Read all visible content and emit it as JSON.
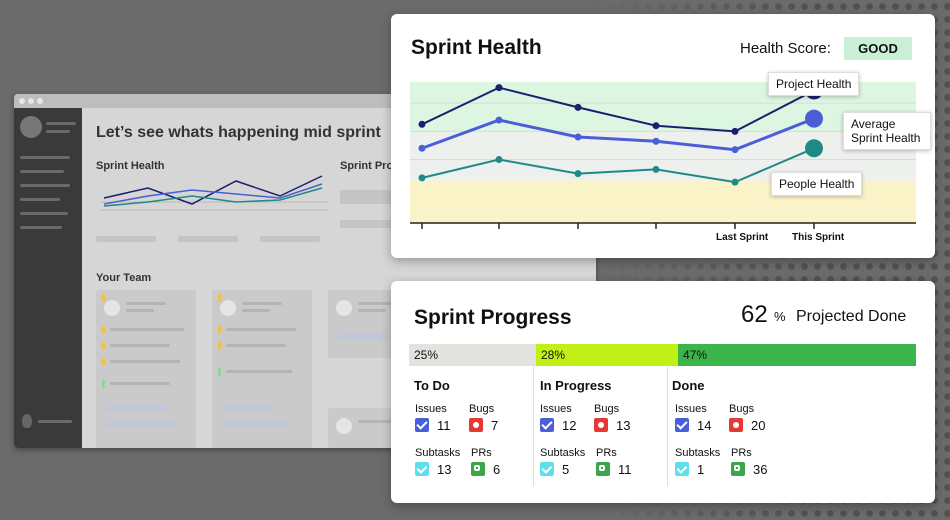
{
  "background_app": {
    "title": "Let’s see whats happening mid sprint",
    "sprint_health_label": "Sprint Health",
    "sprint_progress_label": "Sprint Prog",
    "team_label": "Your Team"
  },
  "health": {
    "title": "Sprint Health",
    "score_label": "Health Score:",
    "score_value": "GOOD",
    "tooltips": {
      "project": "Project Health",
      "average": "Average Sprint Health",
      "people": "People Health"
    },
    "x_labels": [
      "Last Sprint",
      "This Sprint"
    ]
  },
  "chart_data": {
    "type": "line",
    "x": [
      "",
      "",
      "",
      "",
      "Last Sprint",
      "This Sprint"
    ],
    "series": [
      {
        "name": "Project Health",
        "color": "#1a1f6e",
        "values": [
          70,
          96,
          82,
          69,
          65,
          94
        ]
      },
      {
        "name": "Average Sprint Health",
        "color": "#4a5ed8",
        "values": [
          53,
          73,
          61,
          58,
          52,
          74
        ]
      },
      {
        "name": "People Health",
        "color": "#1f8a85",
        "values": [
          32,
          45,
          35,
          38,
          29,
          53
        ]
      }
    ],
    "bands": [
      {
        "from": 65,
        "to": 100,
        "color": "#dcf6e2"
      },
      {
        "from": 30,
        "to": 65,
        "color": "#eef0ee"
      },
      {
        "from": 0,
        "to": 30,
        "color": "#fbf3c8"
      }
    ],
    "ylim": [
      0,
      100
    ],
    "grid": true
  },
  "progress": {
    "title": "Sprint Progress",
    "projected_value": "62",
    "projected_unit": "%",
    "projected_label": "Projected Done",
    "segments": [
      {
        "label": "25%",
        "color": "#e4e2de",
        "fraction": 0.25
      },
      {
        "label": "28%",
        "color": "#c1f016",
        "fraction": 0.28
      },
      {
        "label": "47%",
        "color": "#3bb54a",
        "fraction": 0.47
      }
    ],
    "columns": [
      {
        "title": "To Do",
        "issues_label": "Issues",
        "bugs_label": "Bugs",
        "subtasks_label": "Subtasks",
        "prs_label": "PRs",
        "issues": "11",
        "bugs": "7",
        "subtasks": "13",
        "prs": "6"
      },
      {
        "title": "In Progress",
        "issues_label": "Issues",
        "bugs_label": "Bugs",
        "subtasks_label": "Subtasks",
        "prs_label": "PRs",
        "issues": "12",
        "bugs": "13",
        "subtasks": "5",
        "prs": "11"
      },
      {
        "title": "Done",
        "issues_label": "Issues",
        "bugs_label": "Bugs",
        "subtasks_label": "Subtasks",
        "prs_label": "PRs",
        "issues": "14",
        "bugs": "20",
        "subtasks": "1",
        "prs": "36"
      }
    ]
  }
}
